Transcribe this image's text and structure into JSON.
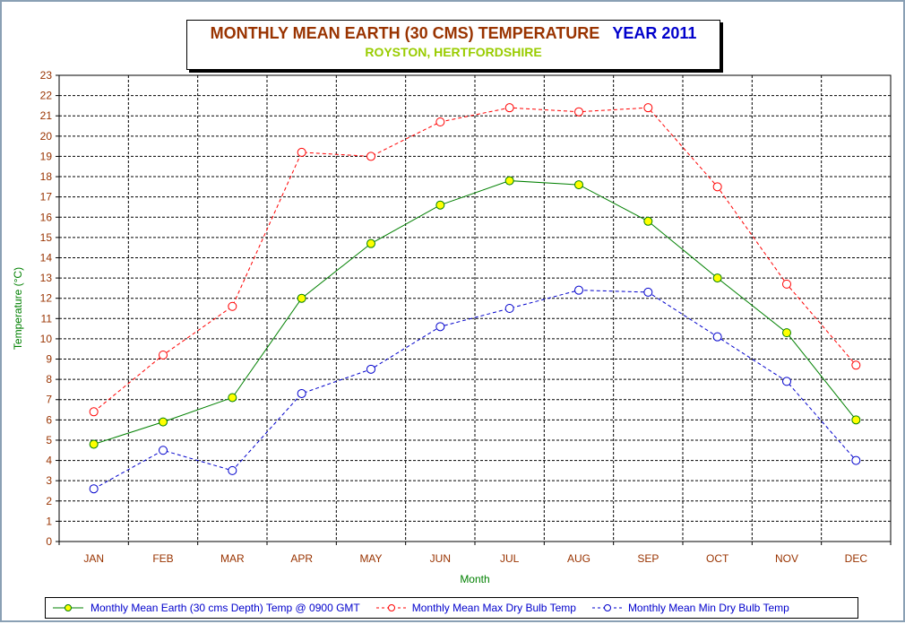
{
  "title": {
    "main": "MONTHLY MEAN  EARTH (30 CMS) TEMPERATURE",
    "year": "YEAR 2011",
    "subtitle": "ROYSTON, HERTFORDSHIRE"
  },
  "colors": {
    "title": "#993300",
    "year": "#0000cc",
    "subtitle": "#99cc00",
    "earth_line": "#008000",
    "earth_marker": "#ffff00",
    "max_line": "#ff0000",
    "min_line": "#0000cc",
    "tick_label": "#993300",
    "axis_title": "#008000"
  },
  "chart_data": {
    "type": "line",
    "title": "MONTHLY MEAN  EARTH (30 CMS) TEMPERATURE  YEAR 2011",
    "subtitle": "ROYSTON, HERTFORDSHIRE",
    "xlabel": "Month",
    "ylabel": "Temperature (°C)",
    "ylim": [
      0,
      23
    ],
    "yticks": [
      "0",
      "1",
      "2",
      "3",
      "4",
      "5",
      "6",
      "7",
      "8",
      "9",
      "10",
      "11",
      "12",
      "13",
      "14",
      "15",
      "16",
      "17",
      "18",
      "19",
      "20",
      "21",
      "22",
      "23"
    ],
    "categories": [
      "JAN",
      "FEB",
      "MAR",
      "APR",
      "MAY",
      "JUN",
      "JUL",
      "AUG",
      "SEP",
      "OCT",
      "NOV",
      "DEC"
    ],
    "grid": true,
    "legend_position": "bottom",
    "series": [
      {
        "name": "Monthly Mean Earth (30 cms Depth) Temp @ 0900 GMT",
        "style": "solid",
        "values": [
          4.8,
          5.9,
          7.1,
          12.0,
          14.7,
          16.6,
          17.8,
          17.6,
          15.8,
          13.0,
          10.3,
          6.0
        ]
      },
      {
        "name": "Monthly Mean Max Dry Bulb Temp",
        "style": "dashed",
        "values": [
          6.4,
          9.2,
          11.6,
          19.2,
          19.0,
          20.7,
          21.4,
          21.2,
          21.4,
          17.5,
          12.7,
          8.7
        ]
      },
      {
        "name": "Monthly Mean Min Dry Bulb Temp",
        "style": "dashed",
        "values": [
          2.6,
          4.5,
          3.5,
          7.3,
          8.5,
          10.6,
          11.5,
          12.4,
          12.3,
          10.1,
          7.9,
          4.0
        ]
      }
    ]
  }
}
